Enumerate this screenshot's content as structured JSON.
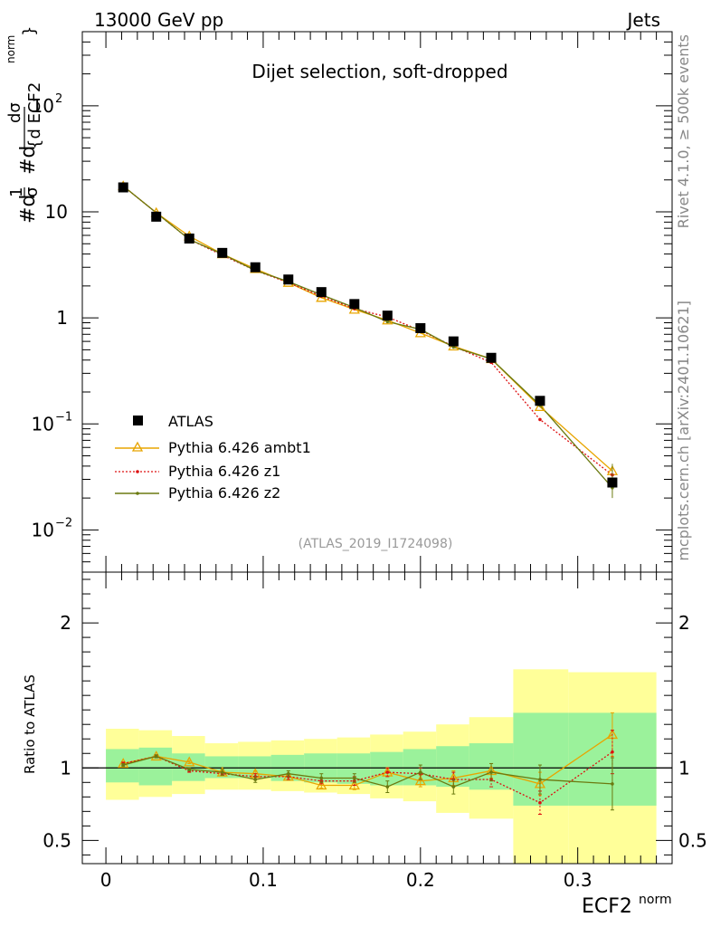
{
  "header": {
    "energy": "13000 GeV pp",
    "category": "Jets"
  },
  "side_text": {
    "rivet": "Rivet 4.1.0, ≥ 500k events",
    "mcplots": "mcplots.cern.ch [arXiv:2401.10621]"
  },
  "colors": {
    "data": "#000000",
    "ambt1": "#e8a500",
    "z1": "#dd1111",
    "z2": "#6b7a10",
    "band_inner": "#9bf29b",
    "band_outer": "#ffff99"
  },
  "chart_data": [
    {
      "type": "scatter",
      "title": "Dijet selection, soft-dropped",
      "analysis_id": "(ATLAS_2019_I1724098)",
      "ylabel": "#d1/σ #d dσ/{d ECF2 norm}",
      "ylabel_parts": {
        "a": "#d",
        "b": "1",
        "c": "σ",
        "d": "#d",
        "e": "dσ",
        "f": "{d ECF2",
        "g": "norm",
        "h": "}"
      },
      "yscale": "log",
      "ylim": [
        0.004,
        500
      ],
      "xlim": [
        -0.015,
        0.36
      ],
      "y_ticks": [
        {
          "v": 0.01,
          "base": "10",
          "exp": "−2"
        },
        {
          "v": 0.1,
          "base": "10",
          "exp": "−1"
        },
        {
          "v": 1,
          "base": "1",
          "exp": ""
        },
        {
          "v": 10,
          "base": "10",
          "exp": ""
        },
        {
          "v": 100,
          "base": "10",
          "exp": "2"
        }
      ],
      "legend": [
        "ATLAS",
        "Pythia 6.426 ambt1",
        "Pythia 6.426 z1",
        "Pythia 6.426 z2"
      ],
      "x": [
        0.011,
        0.032,
        0.053,
        0.074,
        0.095,
        0.116,
        0.137,
        0.158,
        0.179,
        0.2,
        0.221,
        0.245,
        0.276,
        0.322
      ],
      "series": [
        {
          "name": "ATLAS",
          "values": [
            17,
            9.0,
            5.6,
            4.1,
            3.0,
            2.3,
            1.75,
            1.35,
            1.05,
            0.8,
            0.6,
            0.42,
            0.165,
            0.028
          ]
        },
        {
          "name": "Pythia 6.426 ambt1",
          "values": [
            17.5,
            9.8,
            5.9,
            4.0,
            2.9,
            2.15,
            1.55,
            1.2,
            0.95,
            0.72,
            0.54,
            0.41,
            0.145,
            0.036
          ]
        },
        {
          "name": "Pythia 6.426 z1",
          "values": [
            17.5,
            9.8,
            5.5,
            3.9,
            2.8,
            2.15,
            1.6,
            1.22,
            1.02,
            0.76,
            0.54,
            0.38,
            0.11,
            0.033
          ]
        },
        {
          "name": "Pythia 6.426 z2",
          "values": [
            17.5,
            9.8,
            5.5,
            4.0,
            2.8,
            2.2,
            1.65,
            1.25,
            0.92,
            0.78,
            0.53,
            0.41,
            0.15,
            0.025
          ]
        }
      ]
    },
    {
      "type": "scatter",
      "ylabel": "Ratio to ATLAS",
      "xlabel": "ECF2",
      "xlabel_sup": "norm",
      "xlim": [
        -0.015,
        0.36
      ],
      "ylim": [
        0.34,
        2.35
      ],
      "y_ticks": [
        "0.5",
        "1",
        "2"
      ],
      "x_ticks": [
        "0",
        "0.1",
        "0.2",
        "0.3"
      ],
      "x": [
        0.011,
        0.032,
        0.053,
        0.074,
        0.095,
        0.116,
        0.137,
        0.158,
        0.179,
        0.2,
        0.221,
        0.245,
        0.276,
        0.322
      ],
      "bin_edges": [
        0,
        0.021,
        0.042,
        0.063,
        0.084,
        0.105,
        0.126,
        0.147,
        0.168,
        0.189,
        0.21,
        0.231,
        0.259,
        0.294,
        0.35
      ],
      "band_inner": [
        [
          0.9,
          1.13
        ],
        [
          0.88,
          1.14
        ],
        [
          0.91,
          1.1
        ],
        [
          0.93,
          1.08
        ],
        [
          0.93,
          1.08
        ],
        [
          0.91,
          1.09
        ],
        [
          0.9,
          1.1
        ],
        [
          0.89,
          1.1
        ],
        [
          0.88,
          1.11
        ],
        [
          0.88,
          1.13
        ],
        [
          0.87,
          1.15
        ],
        [
          0.85,
          1.17
        ],
        [
          0.74,
          1.38
        ],
        [
          0.74,
          1.38
        ]
      ],
      "band_outer": [
        [
          0.78,
          1.27
        ],
        [
          0.8,
          1.26
        ],
        [
          0.82,
          1.22
        ],
        [
          0.85,
          1.17
        ],
        [
          0.85,
          1.18
        ],
        [
          0.84,
          1.19
        ],
        [
          0.83,
          1.2
        ],
        [
          0.82,
          1.21
        ],
        [
          0.79,
          1.23
        ],
        [
          0.77,
          1.25
        ],
        [
          0.69,
          1.3
        ],
        [
          0.65,
          1.35
        ],
        [
          0.34,
          1.68
        ],
        [
          0.34,
          1.66
        ]
      ],
      "series": [
        {
          "name": "Pythia 6.426 ambt1",
          "values": [
            1.03,
            1.08,
            1.04,
            0.97,
            0.96,
            0.94,
            0.88,
            0.88,
            0.97,
            0.91,
            0.93,
            0.98,
            0.89,
            1.23
          ],
          "errors": [
            0.01,
            0.01,
            0.01,
            0.01,
            0.02,
            0.02,
            0.02,
            0.03,
            0.03,
            0.04,
            0.05,
            0.05,
            0.08,
            0.15
          ]
        },
        {
          "name": "Pythia 6.426 z1",
          "values": [
            1.03,
            1.08,
            0.98,
            0.96,
            0.94,
            0.94,
            0.91,
            0.91,
            0.97,
            0.96,
            0.92,
            0.92,
            0.76,
            1.11
          ],
          "errors": [
            0.01,
            0.01,
            0.01,
            0.01,
            0.02,
            0.02,
            0.02,
            0.03,
            0.03,
            0.04,
            0.05,
            0.05,
            0.08,
            0.15
          ]
        },
        {
          "name": "Pythia 6.426 z2",
          "values": [
            1.02,
            1.08,
            0.99,
            0.97,
            0.92,
            0.96,
            0.93,
            0.93,
            0.87,
            0.97,
            0.87,
            0.97,
            0.92,
            0.89
          ],
          "errors": [
            0.01,
            0.01,
            0.01,
            0.02,
            0.02,
            0.02,
            0.03,
            0.03,
            0.04,
            0.05,
            0.05,
            0.06,
            0.1,
            0.18
          ]
        }
      ]
    }
  ]
}
